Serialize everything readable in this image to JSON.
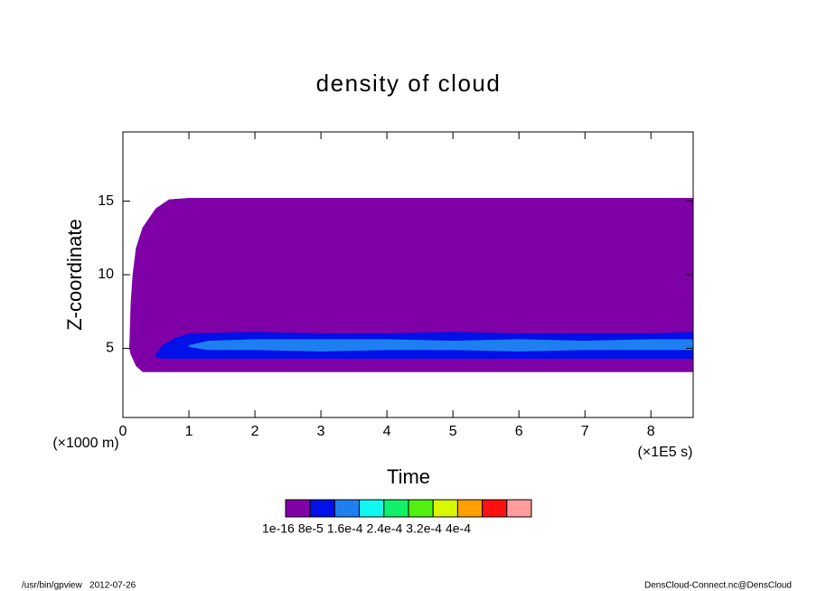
{
  "chart_data": {
    "type": "contour",
    "title": "density of cloud",
    "x_label": "Time",
    "y_label": "Z-coordinate",
    "x_unit": "(×1E5 s)",
    "y_unit": "(×1000 m)",
    "xlim": [
      0,
      8.64
    ],
    "ylim": [
      0.3,
      19.7
    ],
    "xticks": [
      0,
      1,
      2,
      3,
      4,
      5,
      6,
      7,
      8
    ],
    "yticks": [
      5,
      10,
      15
    ],
    "colorbar": {
      "colors": [
        "#8000a8",
        "#0010e8",
        "#1e80f0",
        "#10f8f0",
        "#10f068",
        "#50f010",
        "#d8f800",
        "#ffa000",
        "#ff1010",
        "#ff9c9c"
      ],
      "labels": [
        {
          "value": 1e-16,
          "label": "1e-16"
        },
        {
          "value": 8e-05,
          "label": "8e-5"
        },
        {
          "value": 0.00016,
          "label": "1.6e-4"
        },
        {
          "value": 0.00024,
          "label": "2.4e-4"
        },
        {
          "value": 0.00032,
          "label": "3.2e-4"
        },
        {
          "value": 0.0004,
          "label": "4e-4"
        }
      ]
    },
    "regions": [
      {
        "level": 0,
        "x": [
          0.1,
          0.12,
          0.15,
          0.2,
          0.3,
          0.5,
          0.7,
          1.0,
          2.0,
          2.5,
          3.0,
          4.0,
          4.5,
          5.0,
          6.0,
          6.5,
          7.0,
          8.0,
          8.64
        ],
        "upper": [
          5.0,
          8.0,
          10.0,
          11.8,
          13.2,
          14.5,
          15.1,
          15.2,
          15.2,
          15.2,
          15.2,
          15.2,
          15.2,
          15.2,
          15.2,
          15.2,
          15.2,
          15.2,
          15.2
        ],
        "lower": [
          5.0,
          4.6,
          4.3,
          3.8,
          3.4,
          3.4,
          3.4,
          3.4,
          3.4,
          3.4,
          3.4,
          3.4,
          3.4,
          3.4,
          3.4,
          3.4,
          3.4,
          3.4,
          3.4
        ]
      },
      {
        "level": 1,
        "x": [
          0.5,
          0.6,
          0.8,
          1.0,
          2.0,
          3.0,
          4.0,
          5.0,
          6.0,
          7.0,
          8.0,
          8.64
        ],
        "upper": [
          4.6,
          5.2,
          5.7,
          6.0,
          6.1,
          6.0,
          6.0,
          6.1,
          6.0,
          6.0,
          6.0,
          6.1
        ],
        "lower": [
          4.4,
          4.3,
          4.3,
          4.3,
          4.3,
          4.3,
          4.3,
          4.3,
          4.3,
          4.3,
          4.3,
          4.3
        ]
      },
      {
        "level": 2,
        "x": [
          1.0,
          1.3,
          2.0,
          3.0,
          4.0,
          5.0,
          6.0,
          7.0,
          8.0,
          8.64
        ],
        "upper": [
          5.2,
          5.5,
          5.6,
          5.6,
          5.6,
          5.5,
          5.6,
          5.5,
          5.6,
          5.6
        ],
        "lower": [
          5.1,
          4.9,
          4.9,
          4.8,
          4.9,
          4.9,
          4.8,
          4.9,
          4.9,
          4.9
        ]
      }
    ]
  },
  "footer": {
    "left": "/usr/bin/gpview   2012-07-26",
    "right": "DensCloud-Connect.nc@DensCloud"
  }
}
